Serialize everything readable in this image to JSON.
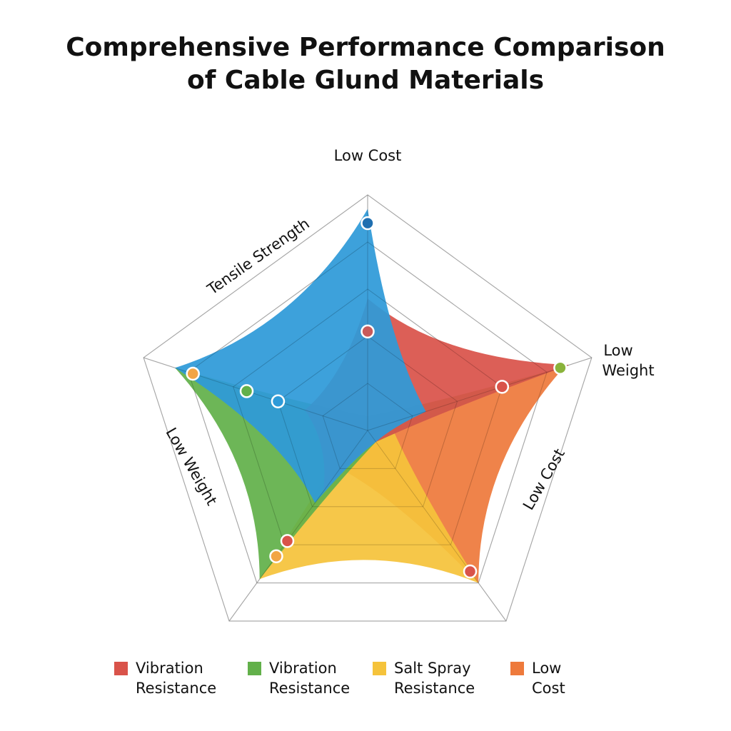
{
  "title": {
    "line1": "Comprehensive Performance Comparison",
    "line2": "of Cable Glund Materials"
  },
  "chart_data": {
    "type": "radar",
    "axes": [
      "Low Cost",
      "Low Weight",
      "Low Cost",
      "Low Weight",
      "Tensile Strength"
    ],
    "rmax": 5,
    "rings": 5,
    "series": [
      {
        "name": "Low Cost",
        "color": "#ee7a3c",
        "values": [
          0.3,
          4.4,
          4.0,
          1.0,
          0.3
        ]
      },
      {
        "name": "Salt Spray Resistance",
        "color": "#f5c33b",
        "values": [
          0.3,
          0.5,
          4.0,
          3.9,
          0.3
        ]
      },
      {
        "name": "Vibration Resistance",
        "color": "#62b04a",
        "values": [
          0.3,
          4.3,
          0.3,
          3.9,
          4.3
        ]
      },
      {
        "name": "Vibration Resistance",
        "color": "#d9534a",
        "values": [
          2.8,
          4.5,
          0.3,
          1.6,
          1.4
        ]
      },
      {
        "name": "",
        "color": "#2e9ad8",
        "values": [
          4.7,
          1.3,
          0.3,
          1.9,
          4.3
        ]
      }
    ],
    "markers": [
      {
        "axis": 0,
        "value": 4.4,
        "fill": "#1f6fb0"
      },
      {
        "axis": 0,
        "value": 2.1,
        "fill": "#c85a5a"
      },
      {
        "axis": 1,
        "value": 4.3,
        "fill": "#8ab33b"
      },
      {
        "axis": 1,
        "value": 3.0,
        "fill": "#d9534a"
      },
      {
        "axis": 2,
        "value": 3.7,
        "fill": "#d9534a"
      },
      {
        "axis": 3,
        "value": 3.3,
        "fill": "#f2a545"
      },
      {
        "axis": 3,
        "value": 2.9,
        "fill": "#d9534a"
      },
      {
        "axis": 4,
        "value": 3.9,
        "fill": "#f2a545"
      },
      {
        "axis": 4,
        "value": 2.7,
        "fill": "#62b04a"
      },
      {
        "axis": 4,
        "value": 2.0,
        "fill": "#2e9ad8"
      }
    ]
  },
  "legend": [
    {
      "label": "Vibration\nResistance",
      "color": "#d9534a"
    },
    {
      "label": "Vibration\nResistance",
      "color": "#62b04a"
    },
    {
      "label": "Salt Spray\nResistance",
      "color": "#f5c33b"
    },
    {
      "label": "Low Cost",
      "color": "#ee7a3c"
    }
  ]
}
